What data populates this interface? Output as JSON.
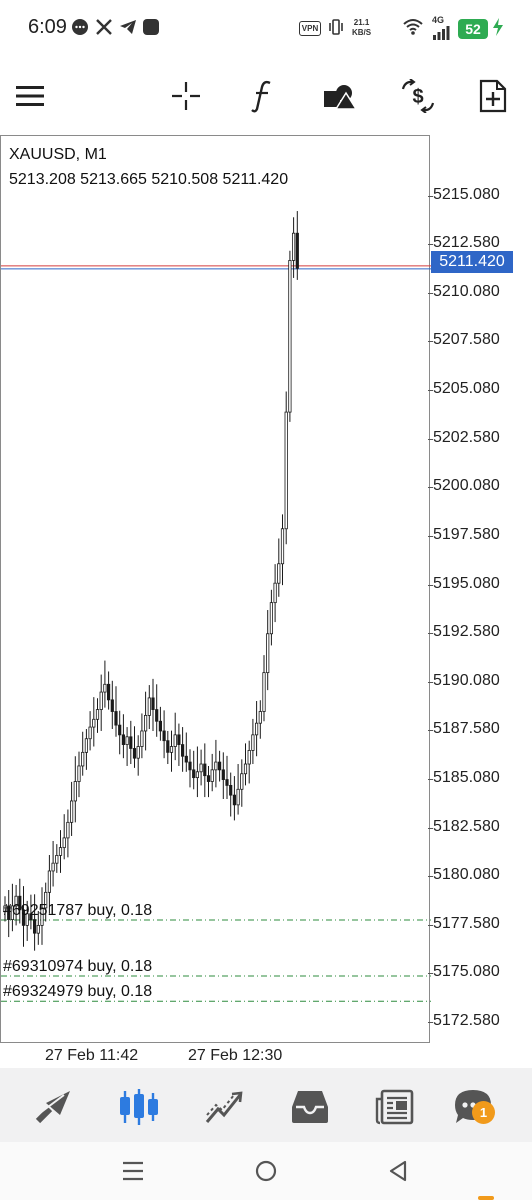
{
  "status_bar": {
    "time": "6:09",
    "net_speed_value": "21.1",
    "net_speed_unit": "KB/S",
    "vpn": "VPN",
    "network_type": "4G",
    "battery": "52",
    "icons": [
      "chat-bubble-icon",
      "x-logo-icon",
      "telegram-icon",
      "app-square-icon",
      "vibrate-icon",
      "wifi-icon",
      "signal-icon",
      "charging-icon"
    ]
  },
  "toolbar": {
    "icons": [
      "menu-icon",
      "crosshair-icon",
      "indicator-f-icon",
      "objects-icon",
      "dollar-trade-icon",
      "new-chart-icon"
    ]
  },
  "chart": {
    "symbol_timeframe": "XAUUSD, M1",
    "ohlc": "5213.208  5213.665  5210.508  5211.420",
    "current_price": "5211.420",
    "price_axis": [
      "5215.080",
      "5212.580",
      "5210.080",
      "5207.580",
      "5205.080",
      "5202.580",
      "5200.080",
      "5197.580",
      "5195.080",
      "5192.580",
      "5190.080",
      "5187.580",
      "5185.080",
      "5182.580",
      "5180.080",
      "5177.580",
      "5175.080",
      "5172.580"
    ],
    "time_axis": [
      "27 Feb 11:42",
      "27 Feb 12:30"
    ],
    "orders": [
      {
        "label": "#69251787 buy, 0.18",
        "price": 5177.88
      },
      {
        "label": "#69310974 buy, 0.18",
        "price": 5175.0
      },
      {
        "label": "#69324979 buy, 0.18",
        "price": 5173.7
      }
    ],
    "colors": {
      "bid_line": "#d43c3c",
      "ask_line": "#2f66c7",
      "order_line": "#2e8b3e",
      "current_price_bg": "#2f66c7",
      "candle": "#1a1a1a"
    }
  },
  "chart_data": {
    "type": "candlestick",
    "title": "XAUUSD, M1",
    "ylim": [
      5171.5,
      5218.2
    ],
    "price_axis_ticks": [
      5215.08,
      5212.58,
      5210.08,
      5207.58,
      5205.08,
      5202.58,
      5200.08,
      5197.58,
      5195.08,
      5192.58,
      5190.08,
      5187.58,
      5185.08,
      5182.58,
      5180.08,
      5177.58,
      5175.08,
      5172.58
    ],
    "current_price": 5211.42,
    "close_path": [
      5178.6,
      5177.9,
      5178.6,
      5179.1,
      5178.4,
      5177.6,
      5178.2,
      5177.9,
      5177.2,
      5177.6,
      5178.5,
      5179.3,
      5180.4,
      5180.8,
      5181.2,
      5181.6,
      5182.1,
      5182.9,
      5184.0,
      5185.0,
      5185.8,
      5186.5,
      5187.2,
      5187.8,
      5188.2,
      5188.7,
      5189.6,
      5190.0,
      5189.2,
      5188.6,
      5187.9,
      5187.4,
      5186.9,
      5187.3,
      5186.7,
      5186.2,
      5186.8,
      5187.6,
      5188.4,
      5189.3,
      5188.7,
      5188.1,
      5187.6,
      5187.1,
      5186.5,
      5186.8,
      5187.4,
      5186.9,
      5186.3,
      5186.0,
      5185.6,
      5185.2,
      5185.5,
      5185.9,
      5185.3,
      5185.0,
      5185.6,
      5186.0,
      5185.6,
      5185.1,
      5184.8,
      5184.3,
      5183.8,
      5184.6,
      5185.4,
      5185.9,
      5186.6,
      5187.4,
      5188.0,
      5188.6,
      5190.6,
      5192.6,
      5194.2,
      5195.2,
      5196.2,
      5198.0,
      5204.0,
      5211.8,
      5213.2,
      5211.4
    ]
  },
  "bottom_nav": {
    "items": [
      "quotes-icon",
      "chart-icon",
      "trade-icon",
      "history-icon",
      "news-icon",
      "messages-icon"
    ],
    "active_index": 1,
    "messages_badge": "1"
  },
  "system_nav": {
    "items": [
      "recents-icon",
      "home-icon",
      "back-icon"
    ]
  }
}
